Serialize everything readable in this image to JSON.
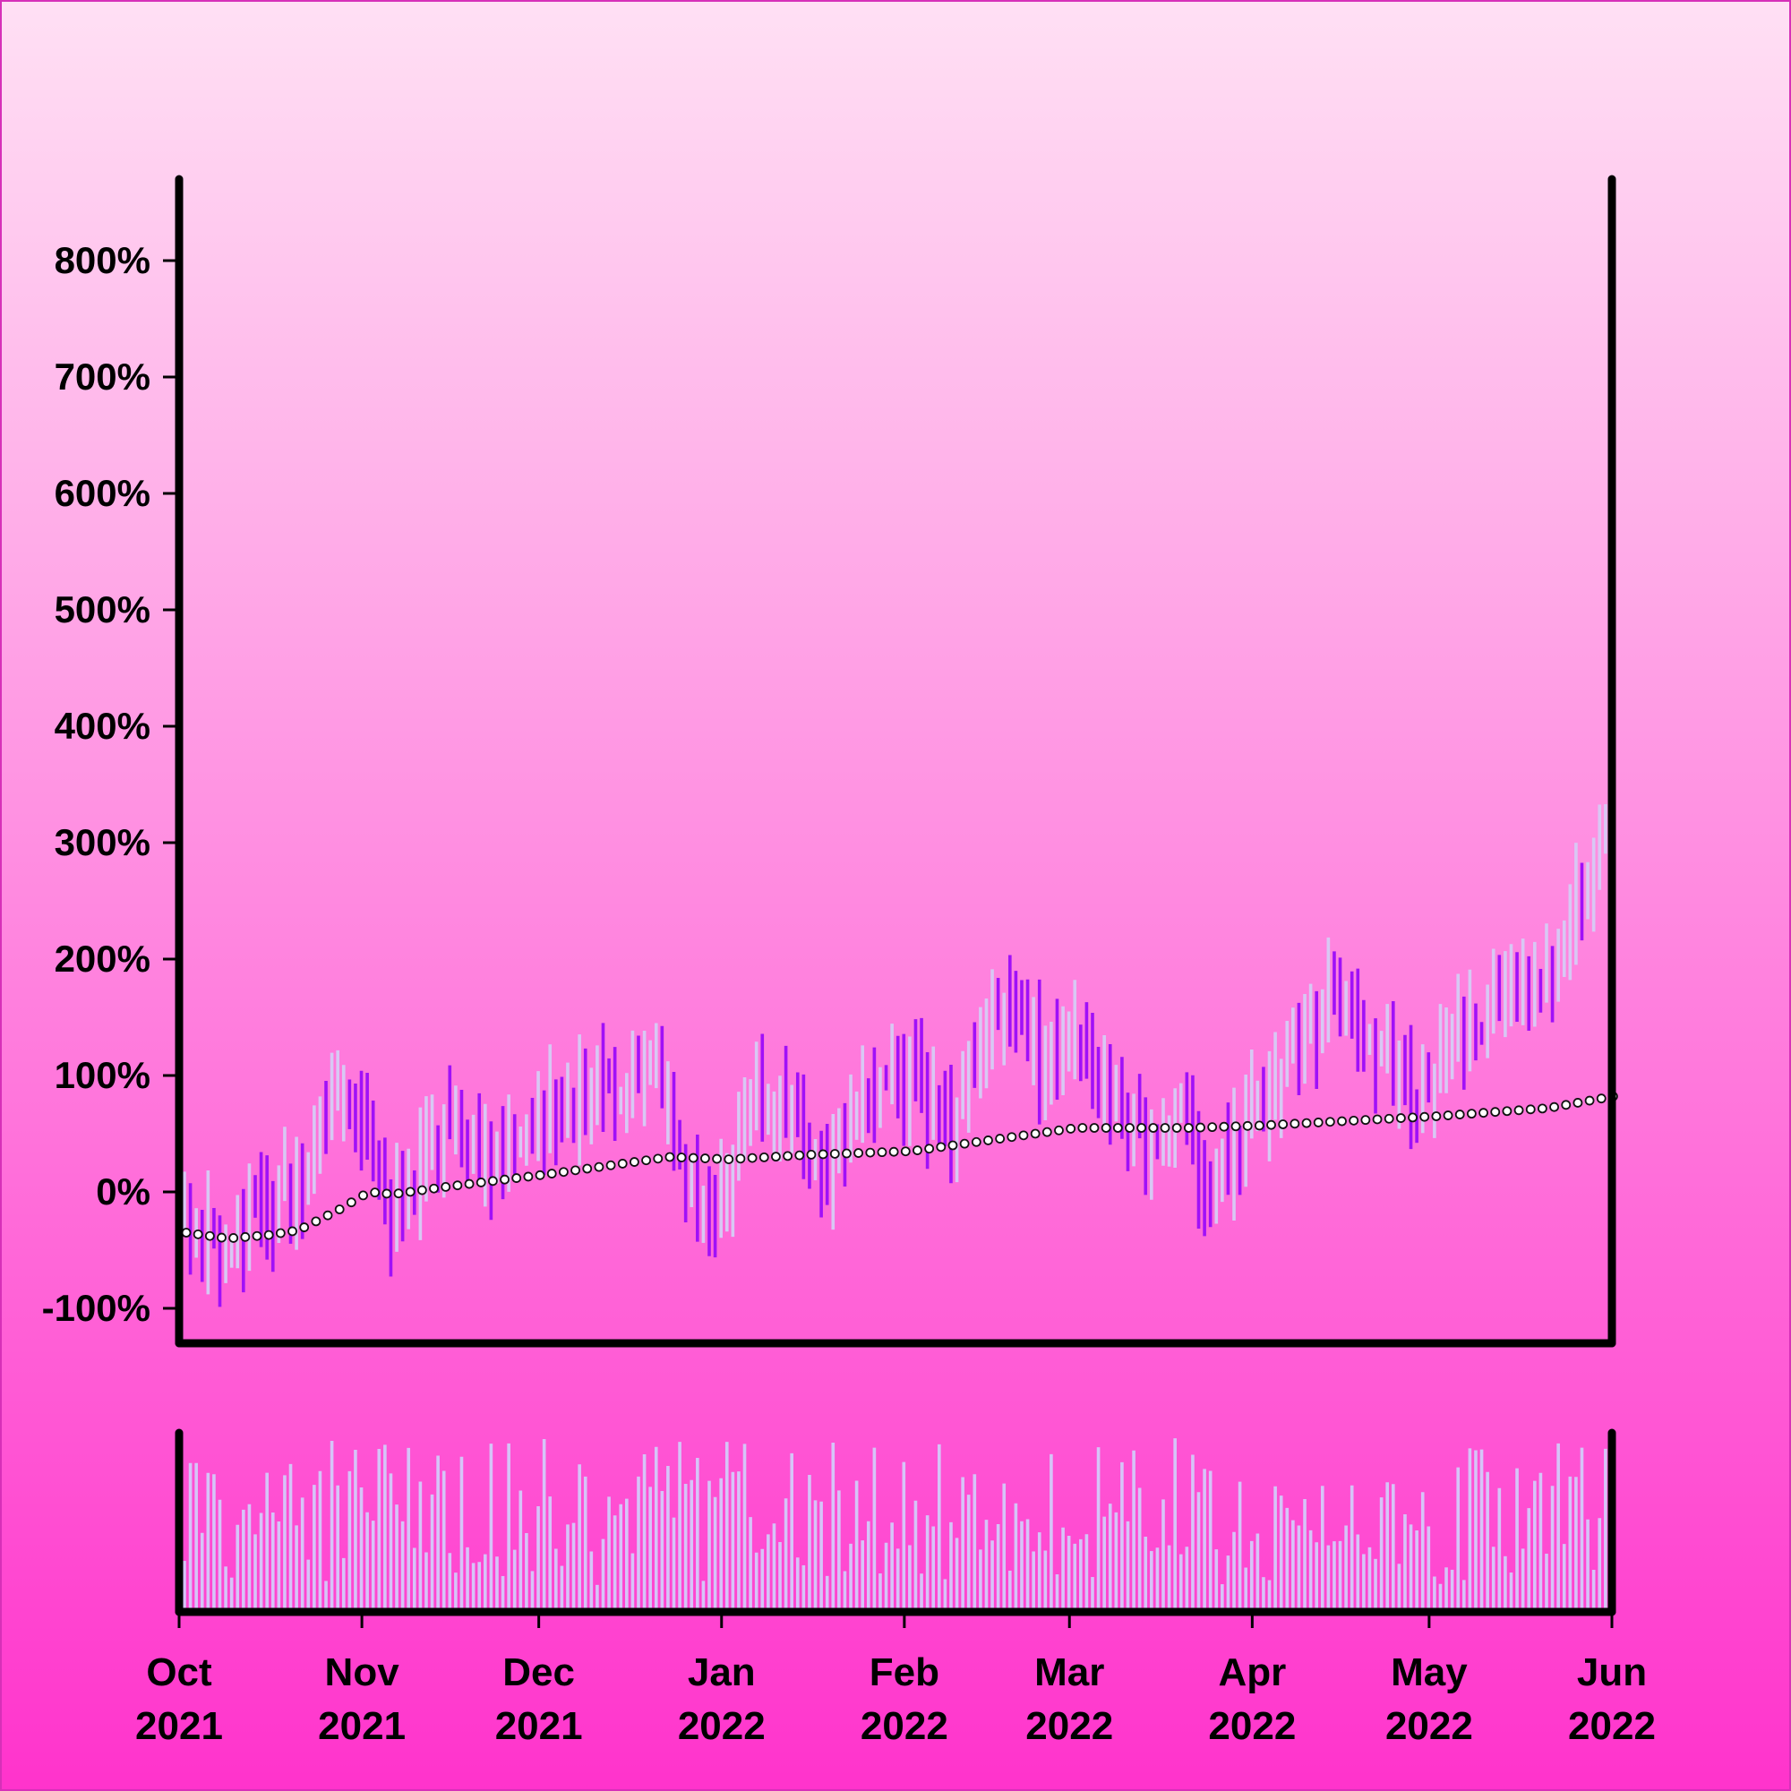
{
  "colors": {
    "background_top": "#ffe0f4",
    "background_bottom": "#ff33cc",
    "border": "#d630b8",
    "up_bar": "#d8c8f4",
    "down_bar": "#a010f8",
    "volume_bar": "#d6c4f8",
    "moving_average_stroke": "#111111",
    "moving_average_fill": "#ffffff",
    "axis": "#000000"
  },
  "chart_data": {
    "type": "ohlc",
    "x_axis": {
      "type": "date",
      "range": [
        "2021-10-01",
        "2022-06-01"
      ],
      "ticks": [
        {
          "date": "2021-10-01",
          "month": "Oct",
          "year": "2021"
        },
        {
          "date": "2021-11-01",
          "month": "Nov",
          "year": "2021"
        },
        {
          "date": "2021-12-01",
          "month": "Dec",
          "year": "2021"
        },
        {
          "date": "2022-01-01",
          "month": "Jan",
          "year": "2022"
        },
        {
          "date": "2022-02-01",
          "month": "Feb",
          "year": "2022"
        },
        {
          "date": "2022-03-01",
          "month": "Mar",
          "year": "2022"
        },
        {
          "date": "2022-04-01",
          "month": "Apr",
          "year": "2022"
        },
        {
          "date": "2022-05-01",
          "month": "May",
          "year": "2022"
        },
        {
          "date": "2022-06-01",
          "month": "Jun",
          "year": "2022"
        }
      ]
    },
    "y_axis": {
      "range": [
        -130,
        870
      ],
      "ticks": [
        {
          "value": -100,
          "label": "-100%"
        },
        {
          "value": 0,
          "label": "0%"
        },
        {
          "value": 100,
          "label": "100%"
        },
        {
          "value": 200,
          "label": "200%"
        },
        {
          "value": 300,
          "label": "300%"
        },
        {
          "value": 400,
          "label": "400%"
        },
        {
          "value": 500,
          "label": "500%"
        },
        {
          "value": 600,
          "label": "600%"
        },
        {
          "value": 700,
          "label": "700%"
        },
        {
          "value": 800,
          "label": "800%"
        }
      ]
    },
    "grid": false,
    "legend": "none",
    "close_anchors": [
      [
        "2021-10-01",
        -35
      ],
      [
        "2021-10-08",
        -45
      ],
      [
        "2021-10-15",
        -10
      ],
      [
        "2021-10-20",
        0
      ],
      [
        "2021-10-27",
        75
      ],
      [
        "2021-11-01",
        60
      ],
      [
        "2021-11-05",
        -30
      ],
      [
        "2021-11-10",
        20
      ],
      [
        "2021-11-15",
        55
      ],
      [
        "2021-11-22",
        25
      ],
      [
        "2021-11-29",
        55
      ],
      [
        "2021-12-06",
        90
      ],
      [
        "2021-12-10",
        105
      ],
      [
        "2021-12-14",
        70
      ],
      [
        "2021-12-20",
        110
      ],
      [
        "2021-12-26",
        0
      ],
      [
        "2021-12-29",
        -30
      ],
      [
        "2022-01-04",
        70
      ],
      [
        "2022-01-10",
        80
      ],
      [
        "2022-01-17",
        20
      ],
      [
        "2022-01-23",
        60
      ],
      [
        "2022-01-28",
        100
      ],
      [
        "2022-02-03",
        80
      ],
      [
        "2022-02-08",
        60
      ],
      [
        "2022-02-12",
        130
      ],
      [
        "2022-02-17",
        155
      ],
      [
        "2022-02-24",
        110
      ],
      [
        "2022-03-01",
        140
      ],
      [
        "2022-03-07",
        80
      ],
      [
        "2022-03-13",
        40
      ],
      [
        "2022-03-18",
        60
      ],
      [
        "2022-03-23",
        0
      ],
      [
        "2022-03-27",
        30
      ],
      [
        "2022-04-01",
        80
      ],
      [
        "2022-04-07",
        120
      ],
      [
        "2022-04-13",
        160
      ],
      [
        "2022-04-18",
        140
      ],
      [
        "2022-04-24",
        120
      ],
      [
        "2022-04-28",
        80
      ],
      [
        "2022-05-03",
        120
      ],
      [
        "2022-05-08",
        140
      ],
      [
        "2022-05-13",
        190
      ],
      [
        "2022-05-18",
        180
      ],
      [
        "2022-05-24",
        230
      ],
      [
        "2022-05-29",
        300
      ],
      [
        "2022-06-01",
        315
      ]
    ],
    "moving_average_anchors": [
      [
        "2021-10-01",
        -35
      ],
      [
        "2021-10-08",
        -40
      ],
      [
        "2021-10-15",
        -37
      ],
      [
        "2021-10-20",
        -33
      ],
      [
        "2021-10-27",
        -15
      ],
      [
        "2021-11-01",
        0
      ],
      [
        "2021-11-05",
        -2
      ],
      [
        "2021-11-15",
        5
      ],
      [
        "2021-12-01",
        15
      ],
      [
        "2021-12-15",
        25
      ],
      [
        "2021-12-22",
        30
      ],
      [
        "2022-01-01",
        28
      ],
      [
        "2022-01-15",
        32
      ],
      [
        "2022-02-01",
        35
      ],
      [
        "2022-02-15",
        45
      ],
      [
        "2022-03-01",
        55
      ],
      [
        "2022-03-20",
        55
      ],
      [
        "2022-04-01",
        57
      ],
      [
        "2022-05-01",
        65
      ],
      [
        "2022-05-20",
        72
      ],
      [
        "2022-06-01",
        83
      ]
    ]
  }
}
